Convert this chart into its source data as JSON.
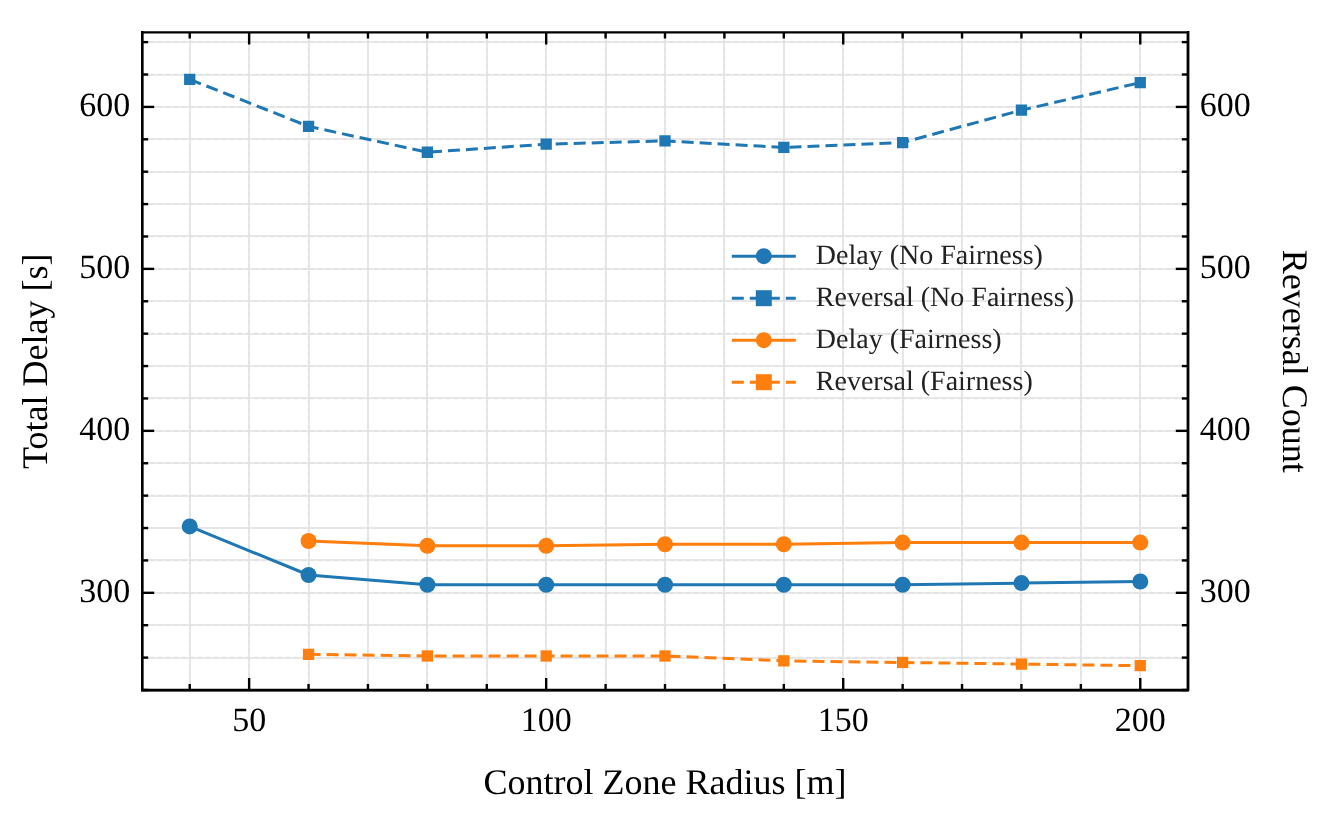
{
  "chart_data": {
    "type": "line",
    "xlabel": "Control Zone Radius [m]",
    "ylabel": "Total Delay [s]",
    "y2label": "Reversal Count",
    "xlim": [
      32,
      208
    ],
    "xticks": [
      {
        "value": 40,
        "label": null
      },
      50,
      {
        "value": 60,
        "label": null
      },
      {
        "value": 70,
        "label": null
      },
      {
        "value": 80,
        "label": null
      },
      {
        "value": 90,
        "label": null
      },
      100,
      {
        "value": 110,
        "label": null
      },
      {
        "value": 120,
        "label": null
      },
      {
        "value": 130,
        "label": null
      },
      {
        "value": 140,
        "label": null
      },
      150,
      {
        "value": 160,
        "label": null
      },
      {
        "value": 170,
        "label": null
      },
      {
        "value": 180,
        "label": null
      },
      {
        "value": 190,
        "label": null
      },
      200
    ],
    "ylim": [
      240,
      646
    ],
    "yticks": [
      {
        "value": 240,
        "label": null
      },
      {
        "value": 260,
        "label": null
      },
      {
        "value": 280,
        "label": null
      },
      300,
      {
        "value": 320,
        "label": null
      },
      {
        "value": 340,
        "label": null
      },
      {
        "value": 360,
        "label": null
      },
      {
        "value": 380,
        "label": null
      },
      400,
      {
        "value": 420,
        "label": null
      },
      {
        "value": 440,
        "label": null
      },
      {
        "value": 460,
        "label": null
      },
      {
        "value": 480,
        "label": null
      },
      500,
      {
        "value": 520,
        "label": null
      },
      {
        "value": 540,
        "label": null
      },
      {
        "value": 560,
        "label": null
      },
      {
        "value": 580,
        "label": null
      },
      600,
      {
        "value": 620,
        "label": null
      },
      {
        "value": 640,
        "label": null
      }
    ],
    "y2lim": [
      240,
      646
    ],
    "y2ticks": [
      {
        "value": 240,
        "label": null
      },
      {
        "value": 260,
        "label": null
      },
      {
        "value": 280,
        "label": null
      },
      300,
      {
        "value": 320,
        "label": null
      },
      {
        "value": 340,
        "label": null
      },
      {
        "value": 360,
        "label": null
      },
      {
        "value": 380,
        "label": null
      },
      400,
      {
        "value": 420,
        "label": null
      },
      {
        "value": 440,
        "label": null
      },
      {
        "value": 460,
        "label": null
      },
      {
        "value": 480,
        "label": null
      },
      500,
      {
        "value": 520,
        "label": null
      },
      {
        "value": 540,
        "label": null
      },
      {
        "value": 560,
        "label": null
      },
      {
        "value": 580,
        "label": null
      },
      600,
      {
        "value": 620,
        "label": null
      },
      {
        "value": 640,
        "label": null
      }
    ],
    "grid": true,
    "legend": "right",
    "series": [
      {
        "name": "Delay (No Fairness)",
        "color": "#1f77b4",
        "marker": "circle",
        "line_style": "solid",
        "x": [
          40,
          60,
          80,
          100,
          120,
          140,
          160,
          180,
          200
        ],
        "values": [
          341,
          311,
          305,
          305,
          305,
          305,
          305,
          306,
          307
        ]
      },
      {
        "name": "Reversal (No Fairness)",
        "color": "#1f77b4",
        "marker": "square",
        "line_style": "dashed",
        "axis": "y2",
        "x": [
          40,
          60,
          80,
          100,
          120,
          140,
          160,
          180,
          200
        ],
        "values": [
          617,
          588,
          572,
          577,
          579,
          575,
          578,
          598,
          615
        ]
      },
      {
        "name": "Delay (Fairness)",
        "color": "#ff7f0e",
        "marker": "circle",
        "line_style": "solid",
        "x": [
          60,
          80,
          100,
          120,
          140,
          160,
          180,
          200
        ],
        "values": [
          332,
          329,
          329,
          330,
          330,
          331,
          331,
          331
        ]
      },
      {
        "name": "Reversal (Fairness)",
        "color": "#ff7f0e",
        "marker": "square",
        "line_style": "dashed",
        "axis": "y2",
        "x": [
          60,
          80,
          100,
          120,
          140,
          160,
          180,
          200
        ],
        "values": [
          262,
          261,
          261,
          261,
          258,
          257,
          256,
          255
        ]
      }
    ]
  }
}
